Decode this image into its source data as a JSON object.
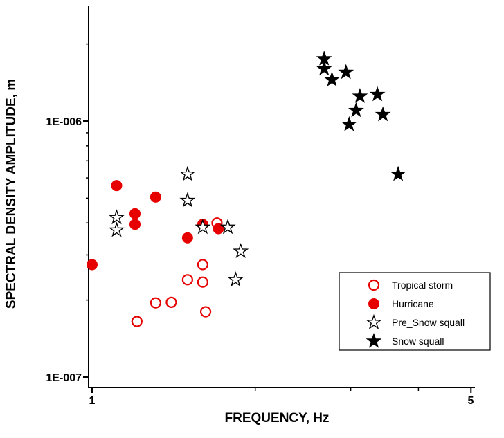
{
  "chart_data": {
    "type": "scatter",
    "title": "",
    "xlabel": "FREQUENCY, Hz",
    "ylabel": "SPECTRAL DENSITY AMPLITUDE, m",
    "x_scale": "log",
    "y_scale": "log",
    "xlim": [
      0.98,
      5.1
    ],
    "ylim": [
      9e-08,
      2.9e-06
    ],
    "grid": false,
    "x_tick_labels": [
      "1",
      "5"
    ],
    "y_tick_labels": [
      "1E-006",
      "1E-007"
    ],
    "x_ticks_labeled": [
      1,
      5
    ],
    "x_ticks_minor": [
      2,
      3,
      4
    ],
    "y_ticks_labeled": [
      1e-07,
      1e-06
    ],
    "y_ticks_minor": [
      2e-07,
      3e-07,
      4e-07,
      5e-07,
      6e-07,
      7e-07,
      8e-07,
      9e-07,
      2e-06
    ],
    "legend_position": "bottom-right",
    "colors": {
      "red": "#e60000",
      "black": "#000000"
    },
    "series": [
      {
        "name": "Tropical storm",
        "marker": "circle-open",
        "color": "#e60000",
        "points": [
          [
            1.21,
            1.65e-07
          ],
          [
            1.31,
            1.95e-07
          ],
          [
            1.4,
            1.96e-07
          ],
          [
            1.5,
            2.4e-07
          ],
          [
            1.6,
            2.75e-07
          ],
          [
            1.6,
            2.35e-07
          ],
          [
            1.62,
            1.8e-07
          ],
          [
            1.7,
            4e-07
          ]
        ]
      },
      {
        "name": "Hurricane",
        "marker": "circle-filled",
        "color": "#e60000",
        "points": [
          [
            1.0,
            2.75e-07
          ],
          [
            1.11,
            5.6e-07
          ],
          [
            1.2,
            4.35e-07
          ],
          [
            1.2,
            3.95e-07
          ],
          [
            1.31,
            5.05e-07
          ],
          [
            1.5,
            3.5e-07
          ],
          [
            1.6,
            3.95e-07
          ],
          [
            1.71,
            3.8e-07
          ]
        ]
      },
      {
        "name": "Pre_Snow squall",
        "marker": "star-open",
        "color": "#000000",
        "points": [
          [
            1.11,
            4.2e-07
          ],
          [
            1.11,
            3.75e-07
          ],
          [
            1.5,
            6.2e-07
          ],
          [
            1.5,
            4.9e-07
          ],
          [
            1.6,
            3.85e-07
          ],
          [
            1.78,
            3.85e-07
          ],
          [
            1.88,
            3.1e-07
          ],
          [
            1.84,
            2.4e-07
          ]
        ]
      },
      {
        "name": "Snow squall",
        "marker": "star-filled",
        "color": "#000000",
        "points": [
          [
            2.68,
            1.75e-06
          ],
          [
            2.68,
            1.6e-06
          ],
          [
            2.77,
            1.45e-06
          ],
          [
            2.94,
            1.55e-06
          ],
          [
            2.98,
            9.7e-07
          ],
          [
            3.07,
            1.1e-06
          ],
          [
            3.12,
            1.25e-06
          ],
          [
            3.36,
            1.27e-06
          ],
          [
            3.44,
            1.06e-06
          ],
          [
            3.67,
            6.2e-07
          ]
        ]
      }
    ]
  }
}
